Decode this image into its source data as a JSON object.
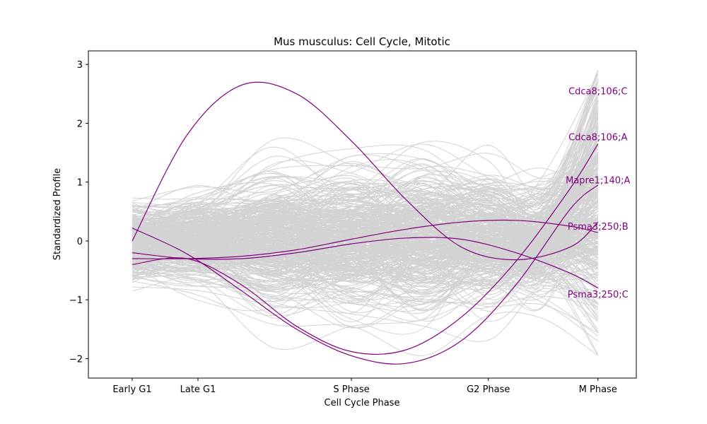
{
  "chart_data": {
    "type": "line",
    "title": "Mus musculus: Cell Cycle, Mitotic",
    "xlabel": "Cell Cycle Phase",
    "ylabel": "Standardized Profile",
    "categories": [
      "Early G1",
      "Late G1",
      "S Phase",
      "G2 Phase",
      "M Phase"
    ],
    "x_positions": [
      0,
      1.2,
      4,
      6.5,
      8.5
    ],
    "xlim": [
      -0.8,
      9.2
    ],
    "ylim": [
      -2.33,
      3.23
    ],
    "yticks": [
      -2,
      -1,
      0,
      1,
      2,
      3
    ],
    "grid": false,
    "background_color": "#d3d3d3",
    "highlight_color": "#800080",
    "highlighted_series": [
      {
        "name": "Cdca8;106;C",
        "x": [
          0,
          1,
          2,
          3,
          4,
          5,
          6,
          7,
          8,
          8.5
        ],
        "y": [
          0.0,
          1.8,
          2.65,
          2.5,
          1.7,
          0.7,
          -0.1,
          -0.32,
          -0.1,
          0.32
        ]
      },
      {
        "name": "Cdca8;106;A",
        "x": [
          0,
          1,
          2,
          3,
          4,
          5,
          6,
          7,
          8,
          8.5
        ],
        "y": [
          -0.2,
          -0.3,
          -0.3,
          -0.2,
          -0.05,
          0.05,
          0.03,
          -0.2,
          -0.55,
          -0.8
        ]
      },
      {
        "name": "Mapre1;140;A",
        "x": [
          0,
          1,
          2,
          3,
          4,
          5,
          6,
          7,
          8,
          8.5
        ],
        "y": [
          -0.3,
          -0.3,
          -0.26,
          -0.15,
          0.03,
          0.2,
          0.32,
          0.35,
          0.25,
          0.14
        ]
      },
      {
        "name": "Psma3;250;B",
        "x": [
          0,
          1,
          2,
          3,
          4,
          5,
          6,
          7,
          8,
          8.5
        ],
        "y": [
          0.22,
          -0.22,
          -0.85,
          -1.5,
          -1.95,
          -2.08,
          -1.7,
          -0.75,
          0.55,
          0.95
        ]
      },
      {
        "name": "Psma3;250;C",
        "x": [
          0,
          1,
          2,
          3,
          4,
          5,
          6,
          7,
          8,
          8.5
        ],
        "y": [
          -0.4,
          -0.3,
          -0.75,
          -1.45,
          -1.88,
          -1.85,
          -1.3,
          -0.35,
          0.9,
          1.65
        ]
      }
    ],
    "annotations": [
      {
        "text": "Cdca8;106;C",
        "x": 8.5,
        "y": 2.55
      },
      {
        "text": "Cdca8;106;A",
        "x": 8.5,
        "y": 1.77
      },
      {
        "text": "Mapre1;140;A",
        "x": 8.5,
        "y": 1.04
      },
      {
        "text": "Psma3;250;B",
        "x": 8.5,
        "y": 0.25
      },
      {
        "text": "Psma3;250;C",
        "x": 8.5,
        "y": -0.9
      }
    ]
  }
}
